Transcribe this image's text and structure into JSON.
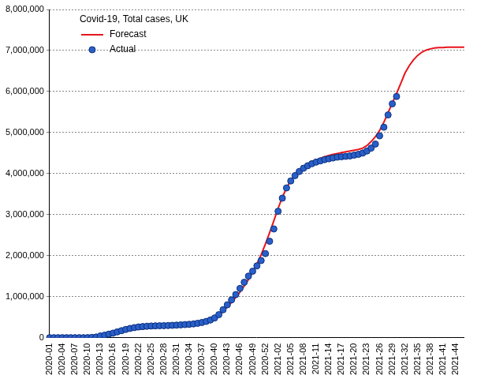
{
  "chart_data": {
    "type": "line",
    "title": "Covid-19, Total cases, UK",
    "categories": [
      "2020-01",
      null,
      null,
      "2020-04",
      null,
      null,
      "2020-07",
      null,
      null,
      "2020-10",
      null,
      null,
      "2020-13",
      null,
      null,
      "2020-16",
      null,
      null,
      "2020-19",
      null,
      null,
      "2020-22",
      null,
      null,
      "2020-25",
      null,
      null,
      "2020-28",
      null,
      null,
      "2020-31",
      null,
      null,
      "2020-34",
      null,
      null,
      "2020-37",
      null,
      null,
      "2020-40",
      null,
      null,
      "2020-43",
      null,
      null,
      "2020-46",
      null,
      null,
      "2020-49",
      null,
      null,
      "2020-52",
      null,
      null,
      "2021-02",
      null,
      null,
      "2021-05",
      null,
      null,
      "2021-08",
      null,
      null,
      "2021-11",
      null,
      null,
      "2021-14",
      null,
      null,
      "2021-17",
      null,
      null,
      "2021-20",
      null,
      null,
      "2021-23",
      null,
      null,
      "2021-26",
      null,
      null,
      "2021-29",
      null,
      null,
      "2021-32",
      null,
      null,
      "2021-35",
      null,
      null,
      "2021-38",
      null,
      null,
      "2021-41",
      null,
      null,
      "2021-44",
      null,
      null
    ],
    "series": [
      {
        "name": "Forecast",
        "color": "#e8141b",
        "type": "line",
        "marker": "none",
        "line_style": "solid",
        "values": [
          0,
          0,
          0,
          0,
          0,
          0,
          0,
          10000,
          20000,
          30000,
          40000,
          50000,
          60000,
          75000,
          90000,
          110000,
          130000,
          150000,
          170000,
          185000,
          195000,
          205000,
          215000,
          225000,
          235000,
          245000,
          255000,
          265000,
          275000,
          285000,
          295000,
          305000,
          315000,
          325000,
          335000,
          345000,
          360000,
          380000,
          410000,
          460000,
          540000,
          640000,
          750000,
          860000,
          980000,
          1110000,
          1260000,
          1420000,
          1600000,
          1800000,
          2020000,
          2280000,
          2560000,
          2850000,
          3150000,
          3420000,
          3650000,
          3830000,
          3970000,
          4080000,
          4170000,
          4240000,
          4290000,
          4330000,
          4370000,
          4410000,
          4440000,
          4470000,
          4490000,
          4510000,
          4530000,
          4550000,
          4570000,
          4590000,
          4620000,
          4680000,
          4780000,
          4900000,
          5050000,
          5250000,
          5480000,
          5720000,
          5950000,
          6200000,
          6450000,
          6630000,
          6770000,
          6880000,
          6960000,
          7010000,
          7040000,
          7060000,
          7070000,
          7070000,
          7080000,
          7080000,
          7080000,
          7080000,
          7080000
        ]
      },
      {
        "name": "Actual",
        "color": "#2a5fc9",
        "type": "scatter",
        "marker": "circle",
        "values": [
          0,
          0,
          0,
          0,
          0,
          0,
          0,
          0,
          0,
          1000,
          5000,
          15000,
          40000,
          60000,
          85000,
          110000,
          140000,
          170000,
          200000,
          225000,
          245000,
          260000,
          270000,
          278000,
          284000,
          288000,
          290000,
          292000,
          295000,
          300000,
          305000,
          312000,
          318000,
          325000,
          335000,
          350000,
          370000,
          395000,
          430000,
          480000,
          560000,
          680000,
          800000,
          920000,
          1050000,
          1200000,
          1350000,
          1500000,
          1620000,
          1750000,
          1880000,
          2050000,
          2350000,
          2650000,
          3080000,
          3400000,
          3650000,
          3820000,
          3950000,
          4050000,
          4130000,
          4190000,
          4240000,
          4280000,
          4310000,
          4340000,
          4360000,
          4380000,
          4400000,
          4410000,
          4420000,
          4430000,
          4450000,
          4470000,
          4500000,
          4550000,
          4620000,
          4720000,
          4920000,
          5130000,
          5430000,
          5700000,
          5880000,
          null,
          null,
          null,
          null,
          null,
          null,
          null,
          null,
          null,
          null,
          null,
          null,
          null,
          null,
          null,
          null
        ]
      }
    ],
    "ylim": [
      0,
      8000000
    ],
    "yticks": [
      0,
      {
        "value": 1000000,
        "label": "1,000,000"
      },
      {
        "value": 2000000,
        "label": "2,000,000"
      },
      {
        "value": 3000000,
        "label": "3,000,000"
      },
      {
        "value": 4000000,
        "label": "4,000,000"
      },
      {
        "value": 5000000,
        "label": "5,000,000"
      },
      {
        "value": 6000000,
        "label": "6,000,000"
      },
      {
        "value": 7000000,
        "label": "7,000,000"
      },
      {
        "value": 8000000,
        "label": "8,000,000"
      }
    ],
    "grid": true,
    "legend": "top-left"
  }
}
